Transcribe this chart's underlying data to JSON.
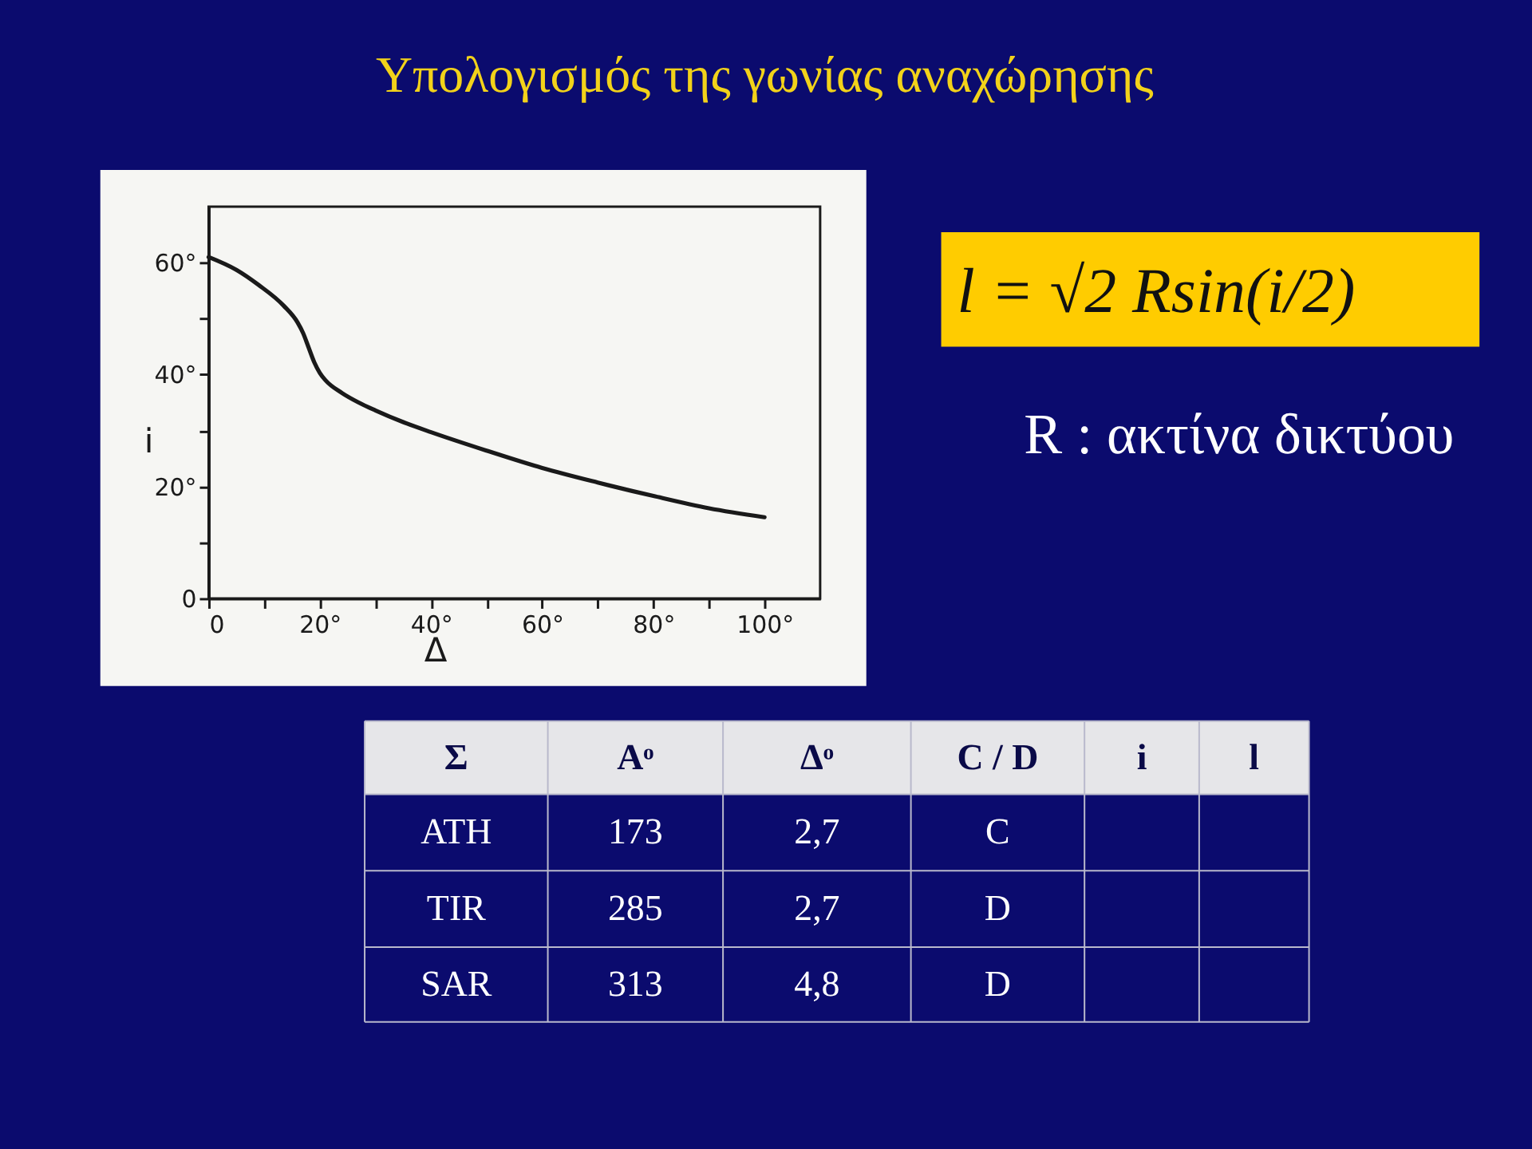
{
  "chart_data": [
    {
      "type": "line",
      "title": "Υπολογισμός της γωνίας αναχώρησης",
      "xlabel": "Δ",
      "ylabel": "i",
      "x": [
        0,
        5,
        9,
        13.5,
        16,
        17,
        18,
        19,
        20,
        21,
        24,
        27,
        30,
        35,
        40,
        50,
        60,
        70,
        80,
        90,
        100
      ],
      "series": [
        {
          "color": "#1a1a1a",
          "values": [
            61,
            58.7,
            56,
            52.3,
            49.3,
            47.4,
            44.8,
            42.2,
            40.3,
            39,
            36.7,
            35,
            33.6,
            31.5,
            29.7,
            26.4,
            23.3,
            20.7,
            18.3,
            16.1,
            14.5
          ]
        }
      ],
      "xlim": [
        0,
        110
      ],
      "ylim": [
        0,
        70
      ],
      "xticks": [
        0,
        {
          "value": 10,
          "label": null
        },
        {
          "value": 20,
          "label": "20°"
        },
        {
          "value": 30,
          "label": null
        },
        {
          "value": 40,
          "label": "40°"
        },
        {
          "value": 50,
          "label": null
        },
        {
          "value": 60,
          "label": "60°"
        },
        {
          "value": 70,
          "label": null
        },
        {
          "value": 80,
          "label": "80°"
        },
        {
          "value": 90,
          "label": null
        },
        {
          "value": 100,
          "label": "100°"
        }
      ],
      "yticks": [
        0,
        {
          "value": 10,
          "label": null
        },
        {
          "value": 20,
          "label": "20°"
        },
        {
          "value": 30,
          "label": null
        },
        {
          "value": 40,
          "label": "40°"
        },
        {
          "value": 50,
          "label": null
        },
        {
          "value": 60,
          "label": "60°"
        }
      ]
    },
    {
      "type": "other",
      "annotations": [
        "l = √2 Rsin(i/2)",
        "R : ακτίνα δικτύου"
      ]
    },
    {
      "type": "other",
      "ylabel": "Σ",
      "categories": [
        "Aᵒ",
        "Δᵒ",
        "C / D",
        "i",
        "l"
      ],
      "y_categories": [
        "ATH",
        "TIR",
        "SAR"
      ],
      "cell_labels": [
        [
          "173",
          "2,7",
          "C",
          null,
          null
        ],
        [
          "285",
          "2,7",
          "D",
          null,
          null
        ],
        [
          "313",
          "4,8",
          "D",
          null,
          null
        ]
      ]
    }
  ]
}
